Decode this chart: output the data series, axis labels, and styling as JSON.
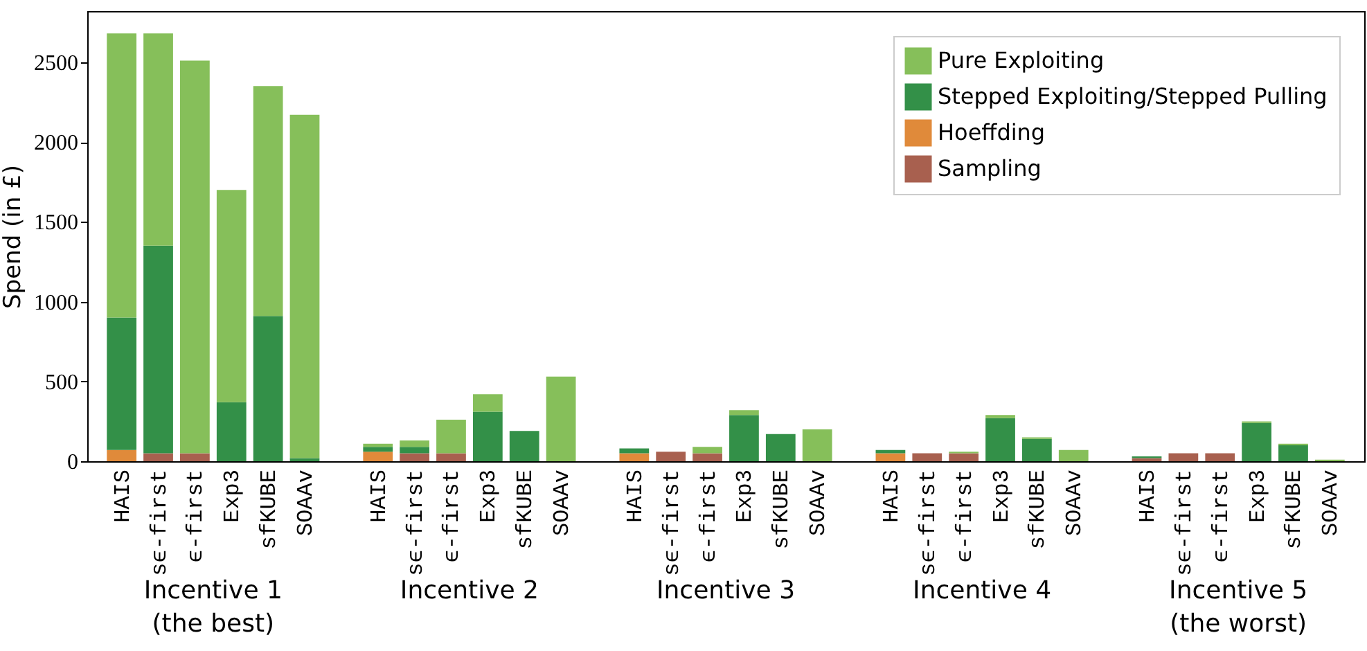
{
  "chart_data": {
    "type": "bar",
    "stacked": true,
    "ylabel": "Spend (in £)",
    "categories": [
      "HAIS",
      "sϵ-first",
      "ϵ-first",
      "Exp3",
      "sfKUBE",
      "SOAAv",
      "HAIS",
      "sϵ-first",
      "ϵ-first",
      "Exp3",
      "sfKUBE",
      "SOAAv",
      "HAIS",
      "sϵ-first",
      "ϵ-first",
      "Exp3",
      "sfKUBE",
      "SOAAv",
      "HAIS",
      "sϵ-first",
      "ϵ-first",
      "Exp3",
      "sfKUBE",
      "SOAAv",
      "HAIS",
      "sϵ-first",
      "ϵ-first",
      "Exp3",
      "sfKUBE",
      "SOAAv"
    ],
    "series": [
      {
        "name": "Sampling",
        "color": "#a8604f",
        "values": [
          0,
          50,
          50,
          0,
          0,
          0,
          0,
          50,
          50,
          0,
          0,
          0,
          0,
          60,
          50,
          0,
          0,
          0,
          0,
          50,
          50,
          0,
          0,
          0,
          20,
          50,
          50,
          0,
          0,
          0
        ]
      },
      {
        "name": "Hoeffding",
        "color": "#e08a3a",
        "values": [
          70,
          0,
          0,
          0,
          0,
          0,
          60,
          0,
          0,
          0,
          0,
          0,
          50,
          0,
          0,
          0,
          0,
          0,
          50,
          0,
          0,
          0,
          0,
          0,
          0,
          0,
          0,
          0,
          0,
          0
        ]
      },
      {
        "name": "Stepped Exploiting/Stepped Pulling",
        "color": "#339048",
        "values": [
          830,
          1300,
          0,
          370,
          910,
          20,
          30,
          40,
          0,
          310,
          190,
          0,
          30,
          0,
          0,
          290,
          170,
          0,
          20,
          0,
          0,
          270,
          140,
          0,
          10,
          0,
          0,
          240,
          100,
          0
        ]
      },
      {
        "name": "Pure Exploiting",
        "color": "#86bf5a",
        "values": [
          1780,
          1330,
          2460,
          1330,
          1440,
          2150,
          20,
          40,
          210,
          110,
          0,
          530,
          0,
          0,
          40,
          30,
          0,
          200,
          0,
          0,
          10,
          20,
          10,
          70,
          0,
          0,
          0,
          10,
          10,
          10
        ]
      }
    ],
    "ylim": [
      0,
      2820
    ],
    "yticks": [
      0,
      500,
      1000,
      1500,
      2000,
      2500
    ],
    "grid": false,
    "legend": "top right",
    "annotations": [
      "Incentive 1\n(the best)",
      "Incentive 2",
      "Incentive 3",
      "Incentive 4",
      "Incentive 5\n(the worst)"
    ]
  }
}
